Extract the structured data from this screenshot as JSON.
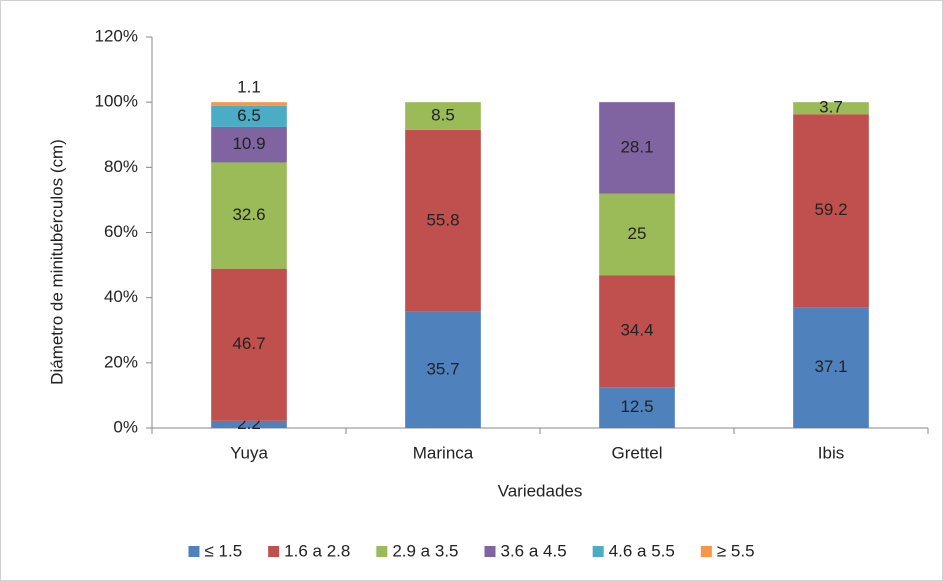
{
  "chart_data": {
    "type": "stacked_bar",
    "y_axis_label": "Diámetro  de minitubérculos  (cm)",
    "x_axis_label": "Variedades",
    "categories": [
      "Yuya",
      "Marinca",
      "Grettel",
      "Ibis"
    ],
    "series": [
      {
        "name": "≤ 1.5",
        "color": "#4f81bd",
        "values": [
          2.2,
          35.7,
          12.5,
          37.1
        ]
      },
      {
        "name": "1.6 a 2.8",
        "color": "#c0504d",
        "values": [
          46.7,
          55.8,
          34.4,
          59.2
        ]
      },
      {
        "name": "2.9 a 3.5",
        "color": "#9bbb59",
        "values": [
          32.6,
          8.5,
          25,
          3.7
        ]
      },
      {
        "name": "3.6 a 4.5",
        "color": "#8064a2",
        "values": [
          10.9,
          null,
          28.1,
          null
        ]
      },
      {
        "name": "4.6 a 5.5",
        "color": "#4bacc6",
        "values": [
          6.5,
          null,
          null,
          null
        ]
      },
      {
        "name": "≥ 5.5",
        "color": "#f79646",
        "values": [
          1.1,
          null,
          null,
          null
        ]
      }
    ],
    "ylim": [
      0,
      120
    ],
    "yticks": [
      {
        "value": 0,
        "label": "0%"
      },
      {
        "value": 20,
        "label": "20%"
      },
      {
        "value": 40,
        "label": "40%"
      },
      {
        "value": 60,
        "label": "60%"
      },
      {
        "value": 80,
        "label": "80%"
      },
      {
        "value": 100,
        "label": "100%"
      },
      {
        "value": 120,
        "label": "120%"
      }
    ],
    "legend": "bottom"
  }
}
